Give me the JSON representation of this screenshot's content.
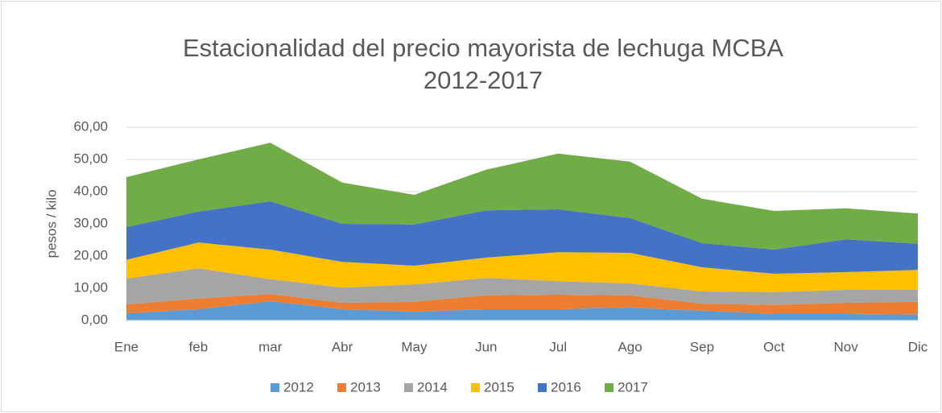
{
  "chart_data": {
    "type": "stacked_area",
    "title": [
      "Estacionalidad del precio mayorista  de lechuga MCBA",
      "2012-2017"
    ],
    "y_label": "pesos / kilo",
    "categories": [
      "Ene",
      "feb",
      "mar",
      "Abr",
      "May",
      "Jun",
      "Jul",
      "Ago",
      "Sep",
      "Oct",
      "Nov",
      "Dic"
    ],
    "series": [
      {
        "name": "2012",
        "color": "#5b9bd5",
        "values": [
          2.2,
          3.5,
          6,
          3.5,
          2.7,
          3.5,
          3.5,
          4,
          3,
          2,
          2,
          1.8
        ]
      },
      {
        "name": "2013",
        "color": "#ed7d31",
        "values": [
          2.8,
          3.3,
          2.2,
          2,
          3.1,
          4.3,
          4.5,
          3.8,
          2.2,
          2.8,
          3.5,
          4
        ]
      },
      {
        "name": "2014",
        "color": "#a5a5a5",
        "values": [
          8,
          9.4,
          4.6,
          4.7,
          5.4,
          5.4,
          4.2,
          3.7,
          3.8,
          4,
          4,
          3.7
        ]
      },
      {
        "name": "2015",
        "color": "#ffc000",
        "values": [
          5.8,
          8,
          9.2,
          8,
          5.8,
          6.3,
          9,
          9.5,
          7.5,
          5.7,
          5.5,
          6.2
        ]
      },
      {
        "name": "2016",
        "color": "#4472c4",
        "values": [
          10.2,
          9.6,
          15,
          11.8,
          12.8,
          14.7,
          13.3,
          10.8,
          7.5,
          7.5,
          10.2,
          8.1
        ]
      },
      {
        "name": "2017",
        "color": "#70ad47",
        "values": [
          15.5,
          16.2,
          18.2,
          12.8,
          9.2,
          12.6,
          17.3,
          17.5,
          13.8,
          12,
          9.6,
          9.4
        ]
      }
    ],
    "ylim": [
      0,
      60
    ],
    "yticks": [
      {
        "value": 0,
        "label": "0,00"
      },
      {
        "value": 10,
        "label": "10,00"
      },
      {
        "value": 20,
        "label": "20,00"
      },
      {
        "value": 30,
        "label": "30,00"
      },
      {
        "value": 40,
        "label": "40,00"
      },
      {
        "value": 50,
        "label": "50,00"
      },
      {
        "value": 60,
        "label": "60,00"
      }
    ],
    "grid": true,
    "legend": "bottom"
  }
}
